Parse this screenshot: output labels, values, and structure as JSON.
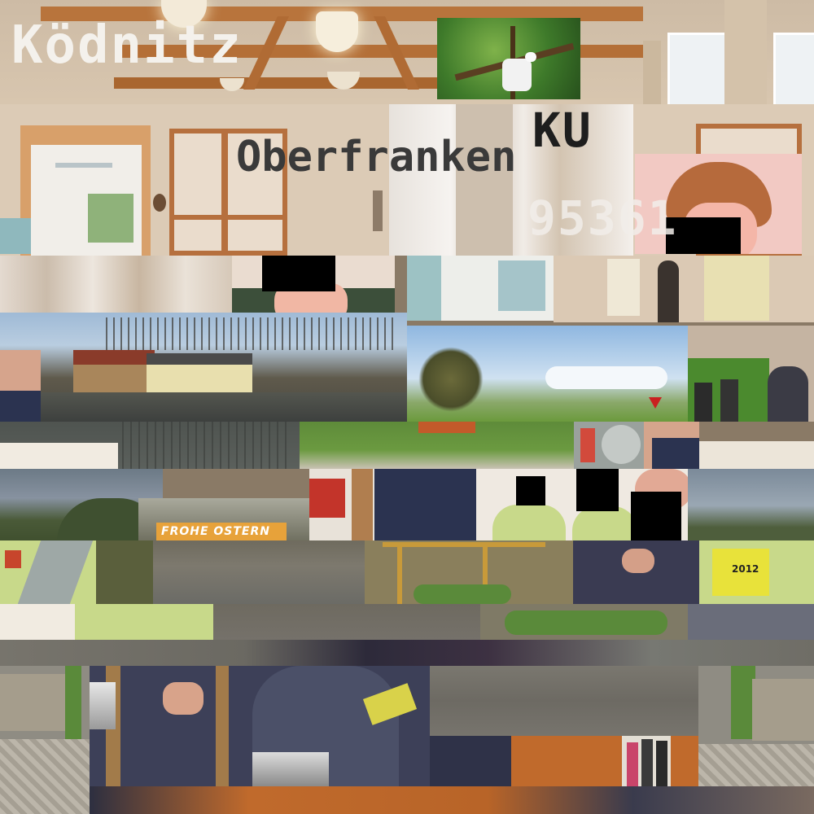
{
  "texts": {
    "place": "Ködnitz",
    "region": "Oberfranken",
    "district": "KU",
    "postal_code": "95361",
    "banner": "FROHE OSTERN",
    "badge_year": "2012"
  },
  "colors": {
    "hall_wall": "#d9c7b3",
    "beam": "#b8743c",
    "sky": "#a9c6e4",
    "grass": "#5c8a3a",
    "river": "#6e6a60",
    "uniform": "#c8d98a",
    "suit": "#2b3350",
    "redaction": "#000000"
  }
}
